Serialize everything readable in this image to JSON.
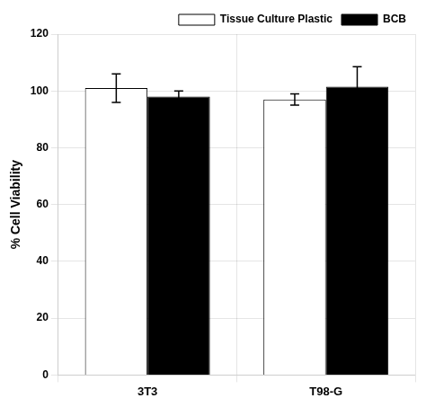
{
  "chart_data": {
    "type": "bar",
    "categories": [
      "3T3",
      "T98-G"
    ],
    "series": [
      {
        "name": "Tissue Culture Plastic",
        "color": "white",
        "values": [
          101,
          97
        ],
        "errors": [
          5,
          2
        ]
      },
      {
        "name": "BCB",
        "color": "black",
        "values": [
          98,
          101.5
        ],
        "errors": [
          2,
          7
        ]
      }
    ],
    "ylabel": "% Cell Viability",
    "ylim": [
      0,
      120
    ],
    "yticks": [
      0,
      20,
      40,
      60,
      80,
      100,
      120
    ],
    "grid": true,
    "legend": "upper right"
  }
}
